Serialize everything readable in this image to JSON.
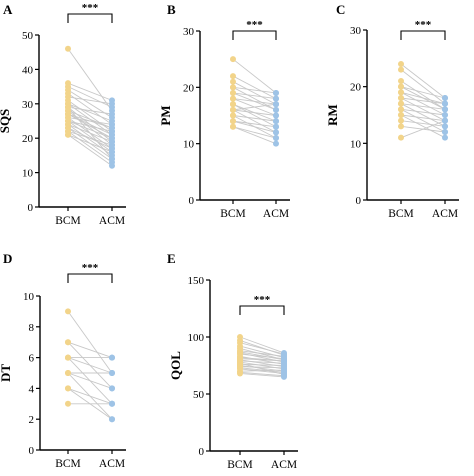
{
  "colors": {
    "before": "#f2d48a",
    "after": "#9ec3e6",
    "line": "#c8c8c8",
    "axis": "#000000"
  },
  "chart_data": [
    {
      "panel": "A",
      "type": "paired-dot",
      "ylabel": "SQS",
      "categories": [
        "BCM",
        "ACM"
      ],
      "ylim": [
        0,
        50
      ],
      "yticks": [
        0,
        10,
        20,
        30,
        40,
        50
      ],
      "significance": "***",
      "pairs": [
        [
          46,
          28
        ],
        [
          36,
          31
        ],
        [
          35,
          29
        ],
        [
          34,
          26
        ],
        [
          33,
          24
        ],
        [
          32,
          30
        ],
        [
          31,
          22
        ],
        [
          30,
          25
        ],
        [
          30,
          21
        ],
        [
          29,
          27
        ],
        [
          29,
          19
        ],
        [
          28,
          23
        ],
        [
          28,
          18
        ],
        [
          27,
          21
        ],
        [
          27,
          20
        ],
        [
          26,
          24
        ],
        [
          26,
          17
        ],
        [
          25,
          22
        ],
        [
          25,
          16
        ],
        [
          24,
          19
        ],
        [
          24,
          15
        ],
        [
          23,
          17
        ],
        [
          23,
          14
        ],
        [
          22,
          18
        ],
        [
          22,
          13
        ],
        [
          21,
          16
        ],
        [
          21,
          12
        ],
        [
          25,
          20
        ],
        [
          27,
          23
        ],
        [
          29,
          14
        ]
      ]
    },
    {
      "panel": "B",
      "type": "paired-dot",
      "ylabel": "PM",
      "categories": [
        "BCM",
        "ACM"
      ],
      "ylim": [
        0,
        30
      ],
      "yticks": [
        0,
        10,
        20,
        30
      ],
      "significance": "***",
      "pairs": [
        [
          25,
          19
        ],
        [
          22,
          18
        ],
        [
          21,
          17
        ],
        [
          20,
          19
        ],
        [
          19,
          16
        ],
        [
          18,
          15
        ],
        [
          18,
          17
        ],
        [
          17,
          14
        ],
        [
          17,
          13
        ],
        [
          16,
          15
        ],
        [
          16,
          12
        ],
        [
          15,
          14
        ],
        [
          15,
          11
        ],
        [
          14,
          12
        ],
        [
          14,
          13
        ],
        [
          13,
          10
        ],
        [
          13,
          11
        ],
        [
          19,
          18
        ],
        [
          20,
          16
        ],
        [
          16,
          17
        ]
      ]
    },
    {
      "panel": "C",
      "type": "paired-dot",
      "ylabel": "RM",
      "categories": [
        "BCM",
        "ACM"
      ],
      "ylim": [
        0,
        30
      ],
      "yticks": [
        0,
        10,
        20,
        30
      ],
      "significance": "***",
      "pairs": [
        [
          24,
          18
        ],
        [
          23,
          17
        ],
        [
          21,
          16
        ],
        [
          20,
          18
        ],
        [
          19,
          15
        ],
        [
          18,
          14
        ],
        [
          18,
          17
        ],
        [
          17,
          16
        ],
        [
          17,
          13
        ],
        [
          16,
          15
        ],
        [
          16,
          12
        ],
        [
          15,
          14
        ],
        [
          15,
          11
        ],
        [
          14,
          13
        ],
        [
          13,
          12
        ],
        [
          11,
          14
        ],
        [
          20,
          16
        ],
        [
          19,
          17
        ]
      ]
    },
    {
      "panel": "D",
      "type": "paired-dot",
      "ylabel": "DT",
      "categories": [
        "BCM",
        "ACM"
      ],
      "ylim": [
        0,
        10
      ],
      "yticks": [
        0,
        2,
        4,
        6,
        8,
        10
      ],
      "significance": "***",
      "pairs": [
        [
          9,
          5
        ],
        [
          7,
          6
        ],
        [
          7,
          4
        ],
        [
          6,
          5
        ],
        [
          6,
          3
        ],
        [
          5,
          4
        ],
        [
          5,
          2
        ],
        [
          4,
          3
        ],
        [
          4,
          2
        ],
        [
          3,
          3
        ],
        [
          6,
          6
        ],
        [
          5,
          5
        ]
      ]
    },
    {
      "panel": "E",
      "type": "paired-dot",
      "ylabel": "QOL",
      "categories": [
        "BCM",
        "ACM"
      ],
      "ylim": [
        0,
        150
      ],
      "yticks": [
        0,
        50,
        100,
        150
      ],
      "significance": "***",
      "pairs": [
        [
          100,
          86
        ],
        [
          97,
          84
        ],
        [
          95,
          85
        ],
        [
          92,
          82
        ],
        [
          90,
          80
        ],
        [
          88,
          83
        ],
        [
          86,
          78
        ],
        [
          85,
          81
        ],
        [
          83,
          76
        ],
        [
          82,
          79
        ],
        [
          80,
          74
        ],
        [
          79,
          77
        ],
        [
          78,
          72
        ],
        [
          76,
          75
        ],
        [
          75,
          70
        ],
        [
          74,
          73
        ],
        [
          72,
          68
        ],
        [
          70,
          71
        ],
        [
          69,
          66
        ],
        [
          68,
          65
        ],
        [
          73,
          69
        ],
        [
          77,
          67
        ],
        [
          81,
          79
        ],
        [
          87,
          80
        ]
      ]
    }
  ]
}
